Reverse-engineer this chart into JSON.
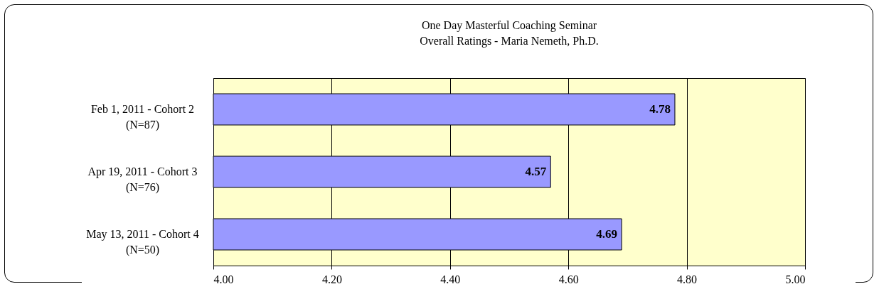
{
  "chart_data": {
    "type": "bar",
    "orientation": "horizontal",
    "title": "One Day Masterful Coaching Seminar",
    "subtitle": "Overall Ratings - Maria Nemeth, Ph.D.",
    "categories": [
      "Feb 1, 2011 - Cohort 2\n(N=87)",
      "Apr 19, 2011 - Cohort 3\n(N=76)",
      "May 13, 2011 - Cohort 4\n(N=50)"
    ],
    "values": [
      4.78,
      4.57,
      4.69
    ],
    "color": "#9999ff",
    "xlim": [
      4,
      5
    ],
    "xticks": [
      {
        "value": 4,
        "label": "4.00"
      },
      {
        "value": 4.2,
        "label": "4.20"
      },
      {
        "value": 4.4,
        "label": "4.40"
      },
      {
        "value": 4.6,
        "label": "4.60"
      },
      {
        "value": 4.8,
        "label": "4.80"
      },
      {
        "value": 5,
        "label": "5.00"
      }
    ],
    "grid": "x",
    "data_labels": true
  }
}
